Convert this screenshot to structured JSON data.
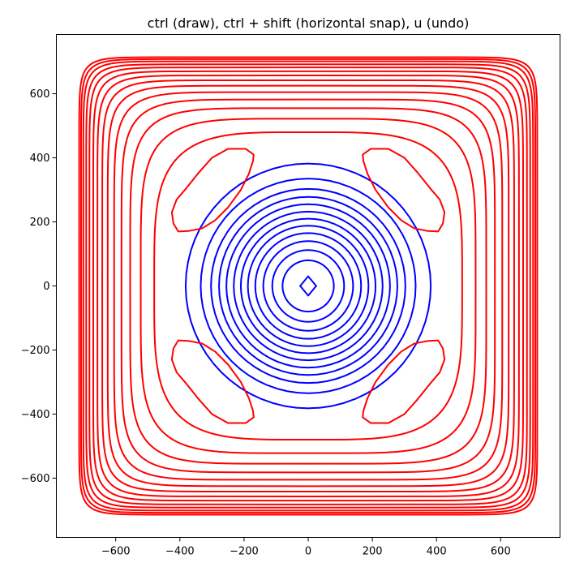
{
  "chart_data": {
    "type": "line",
    "title": "ctrl (draw), ctrl + shift (horizontal snap), u (undo)",
    "xlabel": "",
    "ylabel": "",
    "xlim": [
      -785,
      785
    ],
    "ylim": [
      -785,
      785
    ],
    "xticks": [
      -600,
      -400,
      -200,
      0,
      200,
      400,
      600
    ],
    "yticks": [
      -600,
      -400,
      -200,
      0,
      200,
      400,
      600
    ],
    "xtick_labels": [
      "−600",
      "−400",
      "−200",
      "0",
      "200",
      "400",
      "600"
    ],
    "ytick_labels": [
      "−600",
      "−400",
      "−200",
      "0",
      "200",
      "400",
      "600"
    ],
    "grid": false,
    "legend": false,
    "colors": {
      "inner": "#0000ff",
      "outer": "#ff0000"
    },
    "series": [
      {
        "kind": "closed-contour",
        "color": "#0000ff",
        "shape": "diamond",
        "half_width": 25
      },
      {
        "kind": "closed-contour",
        "color": "#0000ff",
        "shape": "circle",
        "radius": 80
      },
      {
        "kind": "closed-contour",
        "color": "#0000ff",
        "shape": "circle",
        "radius": 112
      },
      {
        "kind": "closed-contour",
        "color": "#0000ff",
        "shape": "circle",
        "radius": 140
      },
      {
        "kind": "closed-contour",
        "color": "#0000ff",
        "shape": "circle",
        "radius": 165
      },
      {
        "kind": "closed-contour",
        "color": "#0000ff",
        "shape": "circle",
        "radius": 188
      },
      {
        "kind": "closed-contour",
        "color": "#0000ff",
        "shape": "circle",
        "radius": 210
      },
      {
        "kind": "closed-contour",
        "color": "#0000ff",
        "shape": "circle",
        "radius": 232
      },
      {
        "kind": "closed-contour",
        "color": "#0000ff",
        "shape": "circle",
        "radius": 255
      },
      {
        "kind": "closed-contour",
        "color": "#0000ff",
        "shape": "circle",
        "radius": 278
      },
      {
        "kind": "closed-contour",
        "color": "#0000ff",
        "shape": "circle",
        "radius": 303
      },
      {
        "kind": "closed-contour",
        "color": "#0000ff",
        "shape": "circle",
        "radius": 335
      },
      {
        "kind": "closed-contour",
        "color": "#0000ff",
        "shape": "circle",
        "radius": 382
      },
      {
        "kind": "corner-lobe",
        "color": "#ff0000",
        "quadrant": [
          1,
          1
        ],
        "inner_x": 170,
        "outer_x": 425,
        "inner_y": 170,
        "outer_y": 425
      },
      {
        "kind": "corner-lobe",
        "color": "#ff0000",
        "quadrant": [
          -1,
          1
        ],
        "inner_x": 170,
        "outer_x": 425,
        "inner_y": 170,
        "outer_y": 425
      },
      {
        "kind": "corner-lobe",
        "color": "#ff0000",
        "quadrant": [
          -1,
          -1
        ],
        "inner_x": 170,
        "outer_x": 425,
        "inner_y": 170,
        "outer_y": 425
      },
      {
        "kind": "corner-lobe",
        "color": "#ff0000",
        "quadrant": [
          1,
          -1
        ],
        "inner_x": 170,
        "outer_x": 425,
        "inner_y": 170,
        "outer_y": 425
      },
      {
        "kind": "closed-contour",
        "color": "#ff0000",
        "shape": "rounded-square",
        "half_width": 480,
        "corner_exponent": 4
      },
      {
        "kind": "closed-contour",
        "color": "#ff0000",
        "shape": "rounded-square",
        "half_width": 522,
        "corner_exponent": 5
      },
      {
        "kind": "closed-contour",
        "color": "#ff0000",
        "shape": "rounded-square",
        "half_width": 555,
        "corner_exponent": 6
      },
      {
        "kind": "closed-contour",
        "color": "#ff0000",
        "shape": "rounded-square",
        "half_width": 582,
        "corner_exponent": 7
      },
      {
        "kind": "closed-contour",
        "color": "#ff0000",
        "shape": "rounded-square",
        "half_width": 605,
        "corner_exponent": 8
      },
      {
        "kind": "closed-contour",
        "color": "#ff0000",
        "shape": "rounded-square",
        "half_width": 625,
        "corner_exponent": 9
      },
      {
        "kind": "closed-contour",
        "color": "#ff0000",
        "shape": "rounded-square",
        "half_width": 642,
        "corner_exponent": 10
      },
      {
        "kind": "closed-contour",
        "color": "#ff0000",
        "shape": "rounded-square",
        "half_width": 657,
        "corner_exponent": 11
      },
      {
        "kind": "closed-contour",
        "color": "#ff0000",
        "shape": "rounded-square",
        "half_width": 670,
        "corner_exponent": 12
      },
      {
        "kind": "closed-contour",
        "color": "#ff0000",
        "shape": "rounded-square",
        "half_width": 682,
        "corner_exponent": 13
      },
      {
        "kind": "closed-contour",
        "color": "#ff0000",
        "shape": "rounded-square",
        "half_width": 692,
        "corner_exponent": 14
      },
      {
        "kind": "closed-contour",
        "color": "#ff0000",
        "shape": "rounded-square",
        "half_width": 701,
        "corner_exponent": 15
      },
      {
        "kind": "closed-contour",
        "color": "#ff0000",
        "shape": "rounded-square",
        "half_width": 708,
        "corner_exponent": 16
      },
      {
        "kind": "closed-contour",
        "color": "#ff0000",
        "shape": "rounded-square",
        "half_width": 714,
        "corner_exponent": 17
      }
    ]
  }
}
